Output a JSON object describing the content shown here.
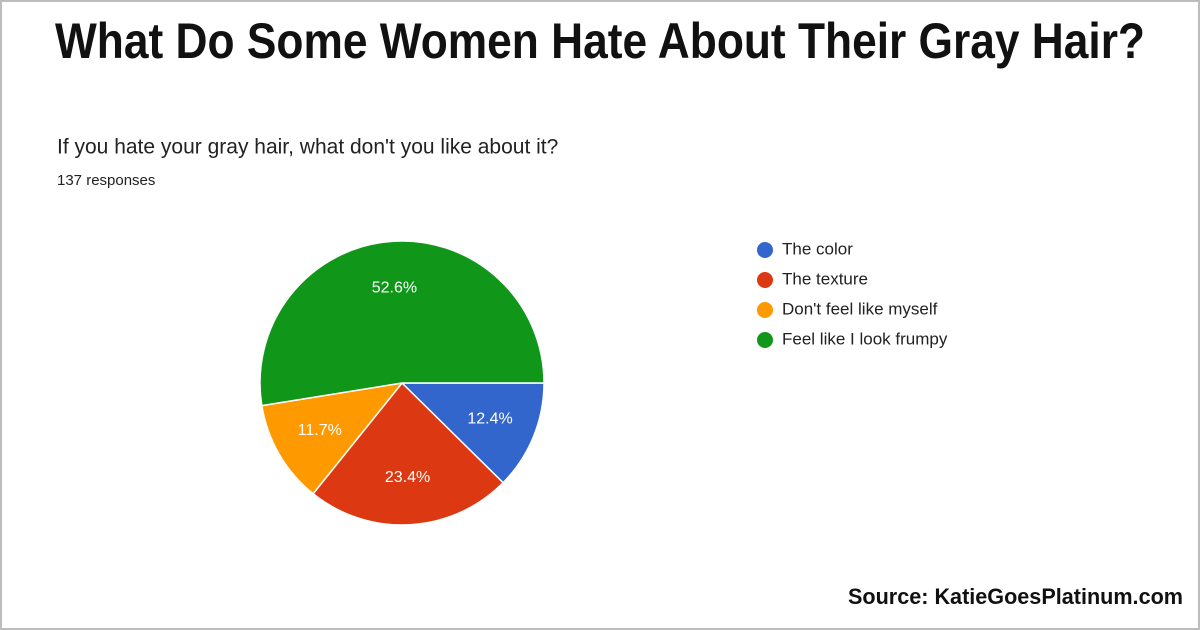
{
  "chart_data": {
    "type": "pie",
    "title": "What Do Some Women Hate About Their Gray Hair?",
    "subtitle": "If you hate your gray hair, what don't you like about it?",
    "note": "137 responses",
    "source": "Source: KatieGoesPlatinum.com",
    "categories": [
      "The color",
      "The texture",
      "Don't feel like myself",
      "Feel like I look frumpy"
    ],
    "values": [
      12.4,
      23.4,
      11.7,
      52.6
    ],
    "value_labels": [
      "12.4%",
      "23.4%",
      "11.7%",
      "52.6%"
    ],
    "colors": [
      "#3366cc",
      "#dc3912",
      "#ff9900",
      "#109618"
    ],
    "legend": "right"
  }
}
